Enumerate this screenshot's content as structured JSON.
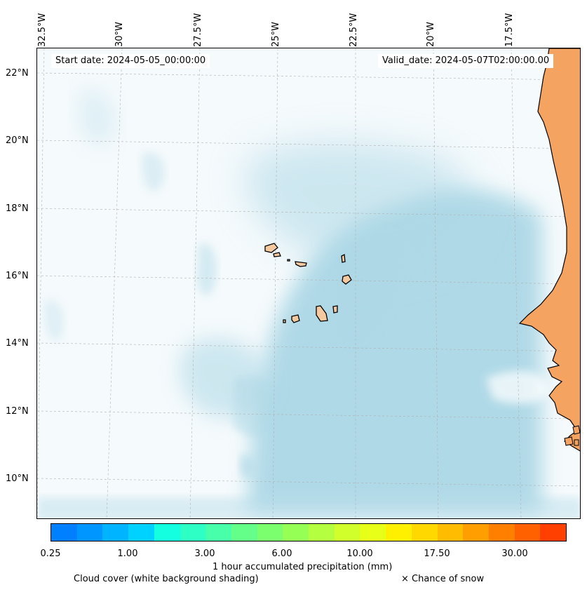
{
  "map": {
    "start_date_label": "Start date: 2024-05-05_00:00:00",
    "valid_date_label": "Valid_date: 2024-05-07T02:00:00.00",
    "longitude_labels": [
      "32.5°W",
      "30°W",
      "27.5°W",
      "25°W",
      "22.5°W",
      "20°W",
      "17.5°W"
    ],
    "latitude_labels": [
      "22°N",
      "20°N",
      "18°N",
      "16°N",
      "14°N",
      "12°N",
      "10°N"
    ],
    "colors": {
      "cloud": "#add8e6",
      "land": "#f4a460",
      "island": "#f5c99f",
      "coast": "#000000",
      "grid": "#b0b0b0"
    }
  },
  "colorbar": {
    "colors": [
      "#0080ff",
      "#0096ff",
      "#00b4ff",
      "#00d2ff",
      "#14ffe0",
      "#2effc4",
      "#48ffaa",
      "#64ff88",
      "#7cff6e",
      "#96ff56",
      "#b4ff40",
      "#d0ff2c",
      "#e8ff18",
      "#fff000",
      "#ffd800",
      "#ffbc00",
      "#ff9e00",
      "#ff8000",
      "#ff6000",
      "#ff4000"
    ],
    "tick_labels": [
      "0.25",
      "1.00",
      "3.00",
      "6.00",
      "10.00",
      "17.50",
      "30.00"
    ],
    "label": "1 hour accumulated precipitation (mm)"
  },
  "legend": {
    "cloud_cover": "Cloud cover (white background shading)",
    "snow": "× Chance of snow"
  }
}
